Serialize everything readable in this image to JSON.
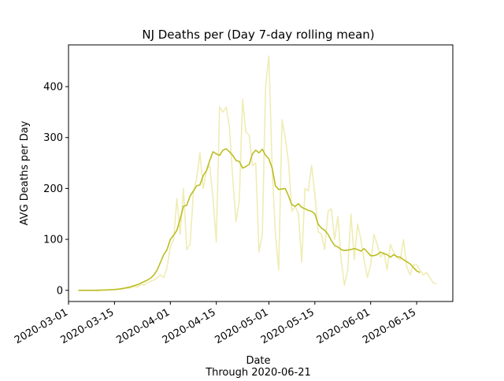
{
  "chart_data": {
    "type": "line",
    "title": "NJ Deaths per (Day 7-day rolling mean)",
    "xlabel_lines": [
      "Date",
      "Through 2020-06-21"
    ],
    "ylabel": "AVG Deaths per Day",
    "x": [
      "2020-03-04",
      "2020-03-05",
      "2020-03-06",
      "2020-03-07",
      "2020-03-08",
      "2020-03-09",
      "2020-03-10",
      "2020-03-11",
      "2020-03-12",
      "2020-03-13",
      "2020-03-14",
      "2020-03-15",
      "2020-03-16",
      "2020-03-17",
      "2020-03-18",
      "2020-03-19",
      "2020-03-20",
      "2020-03-21",
      "2020-03-22",
      "2020-03-23",
      "2020-03-24",
      "2020-03-25",
      "2020-03-26",
      "2020-03-27",
      "2020-03-28",
      "2020-03-29",
      "2020-03-30",
      "2020-03-31",
      "2020-04-01",
      "2020-04-02",
      "2020-04-03",
      "2020-04-04",
      "2020-04-05",
      "2020-04-06",
      "2020-04-07",
      "2020-04-08",
      "2020-04-09",
      "2020-04-10",
      "2020-04-11",
      "2020-04-12",
      "2020-04-13",
      "2020-04-14",
      "2020-04-15",
      "2020-04-16",
      "2020-04-17",
      "2020-04-18",
      "2020-04-19",
      "2020-04-20",
      "2020-04-21",
      "2020-04-22",
      "2020-04-23",
      "2020-04-24",
      "2020-04-25",
      "2020-04-26",
      "2020-04-27",
      "2020-04-28",
      "2020-04-29",
      "2020-04-30",
      "2020-05-01",
      "2020-05-02",
      "2020-05-03",
      "2020-05-04",
      "2020-05-05",
      "2020-05-06",
      "2020-05-07",
      "2020-05-08",
      "2020-05-09",
      "2020-05-10",
      "2020-05-11",
      "2020-05-12",
      "2020-05-13",
      "2020-05-14",
      "2020-05-15",
      "2020-05-16",
      "2020-05-17",
      "2020-05-18",
      "2020-05-19",
      "2020-05-20",
      "2020-05-21",
      "2020-05-22",
      "2020-05-23",
      "2020-05-24",
      "2020-05-25",
      "2020-05-26",
      "2020-05-27",
      "2020-05-28",
      "2020-05-29",
      "2020-05-30",
      "2020-05-31",
      "2020-06-01",
      "2020-06-02",
      "2020-06-03",
      "2020-06-04",
      "2020-06-05",
      "2020-06-06",
      "2020-06-07",
      "2020-06-08",
      "2020-06-09",
      "2020-06-10",
      "2020-06-11",
      "2020-06-12",
      "2020-06-13",
      "2020-06-14",
      "2020-06-15",
      "2020-06-16",
      "2020-06-17",
      "2020-06-18",
      "2020-06-19",
      "2020-06-20",
      "2020-06-21"
    ],
    "series": [
      {
        "color": "#f0ecb4",
        "values": [
          0,
          0,
          0,
          0,
          0,
          0,
          1,
          0,
          1,
          1,
          2,
          1,
          3,
          2,
          5,
          4,
          5,
          8,
          6,
          12,
          10,
          15,
          18,
          20,
          25,
          30,
          25,
          45,
          85,
          100,
          180,
          110,
          200,
          80,
          90,
          190,
          220,
          270,
          200,
          235,
          245,
          180,
          95,
          360,
          350,
          360,
          320,
          220,
          135,
          175,
          375,
          310,
          305,
          245,
          250,
          75,
          110,
          400,
          460,
          240,
          110,
          40,
          335,
          300,
          250,
          155,
          165,
          150,
          55,
          200,
          195,
          245,
          190,
          115,
          110,
          80,
          155,
          160,
          100,
          145,
          60,
          10,
          40,
          150,
          60,
          130,
          100,
          60,
          25,
          50,
          110,
          90,
          65,
          75,
          40,
          90,
          75,
          65,
          60,
          100,
          45,
          30,
          50,
          50,
          40,
          30,
          35,
          25,
          15,
          12
        ]
      },
      {
        "color": "#bcbd22",
        "values": [
          0,
          0,
          0,
          0,
          0,
          0,
          0,
          0.3,
          0.5,
          0.7,
          1,
          1.5,
          2,
          3,
          4,
          5.5,
          7,
          9,
          11,
          14,
          17,
          20,
          24,
          30,
          40,
          55,
          70,
          80,
          100,
          108,
          118,
          140,
          165,
          167,
          185,
          195,
          205,
          207,
          225,
          235,
          255,
          272,
          268,
          265,
          275,
          278,
          272,
          265,
          255,
          253,
          240,
          243,
          247,
          268,
          275,
          270,
          277,
          265,
          258,
          240,
          205,
          198,
          199,
          200,
          185,
          168,
          165,
          170,
          163,
          160,
          157,
          155,
          150,
          130,
          122,
          118,
          110,
          98,
          88,
          85,
          80,
          78,
          79,
          80,
          82,
          80,
          77,
          82,
          75,
          68,
          68,
          70,
          75,
          72,
          70,
          65,
          70,
          66,
          65,
          60,
          56,
          52,
          45,
          38,
          35,
          null,
          null,
          null,
          null,
          null
        ]
      }
    ],
    "xlim": [
      "2020-03-01",
      "2020-06-26"
    ],
    "xticks": [
      "2020-03-01",
      "2020-03-15",
      "2020-04-01",
      "2020-04-15",
      "2020-05-01",
      "2020-05-15",
      "2020-06-01",
      "2020-06-15"
    ],
    "ylim": [
      -22,
      482
    ],
    "yticks": [
      0,
      100,
      200,
      300,
      400
    ]
  }
}
